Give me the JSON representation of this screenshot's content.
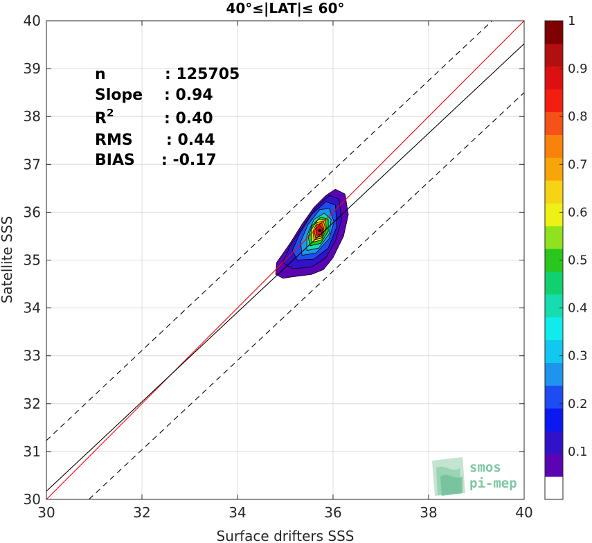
{
  "chart_data": {
    "type": "contour-scatter",
    "title": "40°≤|LAT|≤ 60°",
    "xlabel": "Surface drifters SSS",
    "ylabel": "Satellite SSS",
    "xlim": [
      30,
      40
    ],
    "ylim": [
      30,
      40
    ],
    "xticks": [
      "30",
      "32",
      "34",
      "36",
      "38",
      "40"
    ],
    "yticks": [
      "30",
      "31",
      "32",
      "33",
      "34",
      "35",
      "36",
      "37",
      "38",
      "39",
      "40"
    ],
    "grid": true,
    "stats": [
      {
        "label": "n",
        "value": ": 125705"
      },
      {
        "label": "Slope",
        "value": ": 0.94"
      },
      {
        "label": "R",
        "sup": "2",
        "value": ": 0.40"
      },
      {
        "label": "RMS",
        "value": ": 0.44"
      },
      {
        "label": "BIAS",
        "value": ": -0.17"
      }
    ],
    "lines": [
      {
        "role": "one-to-one",
        "color": "#ff0000",
        "style": "solid",
        "points": [
          [
            30,
            30
          ],
          [
            40,
            40
          ]
        ]
      },
      {
        "role": "regression",
        "color": "#000000",
        "style": "solid",
        "points": [
          [
            30,
            30.17
          ],
          [
            40,
            39.52
          ]
        ]
      },
      {
        "role": "upper-bound",
        "color": "#000000",
        "style": "dashed",
        "points": [
          [
            30,
            31.23
          ],
          [
            40,
            40.63
          ]
        ]
      },
      {
        "role": "lower-bound",
        "color": "#000000",
        "style": "dashed",
        "points": [
          [
            30.89,
            30
          ],
          [
            40,
            38.5
          ]
        ]
      }
    ],
    "density_center": [
      35.72,
      35.62
    ],
    "contour_levels": [
      {
        "level": 0.05,
        "color": "#5a04b4",
        "polygon": [
          [
            35.15,
            34.65
          ],
          [
            35.55,
            34.7
          ],
          [
            35.8,
            34.8
          ],
          [
            36.0,
            35.05
          ],
          [
            36.22,
            35.5
          ],
          [
            36.32,
            35.95
          ],
          [
            36.25,
            36.38
          ],
          [
            36.05,
            36.48
          ],
          [
            35.85,
            36.35
          ],
          [
            35.6,
            36.1
          ],
          [
            35.35,
            35.75
          ],
          [
            35.1,
            35.35
          ],
          [
            34.82,
            34.95
          ],
          [
            34.8,
            34.7
          ],
          [
            34.95,
            34.62
          ]
        ]
      },
      {
        "level": 0.1,
        "color": "#3212c8",
        "polygon": [
          [
            35.15,
            34.82
          ],
          [
            35.55,
            34.85
          ],
          [
            35.85,
            35.05
          ],
          [
            36.05,
            35.4
          ],
          [
            36.18,
            35.85
          ],
          [
            36.12,
            36.28
          ],
          [
            35.92,
            36.35
          ],
          [
            35.65,
            36.1
          ],
          [
            35.4,
            35.75
          ],
          [
            35.1,
            35.3
          ],
          [
            34.95,
            34.95
          ]
        ]
      },
      {
        "level": 0.2,
        "color": "#1e4cf0",
        "polygon": [
          [
            35.25,
            35.0
          ],
          [
            35.6,
            35.02
          ],
          [
            35.9,
            35.25
          ],
          [
            36.08,
            35.7
          ],
          [
            36.05,
            36.15
          ],
          [
            35.85,
            36.22
          ],
          [
            35.55,
            35.95
          ],
          [
            35.3,
            35.55
          ],
          [
            35.15,
            35.2
          ]
        ]
      },
      {
        "level": 0.3,
        "color": "#1d95ec",
        "polygon": [
          [
            35.35,
            35.1
          ],
          [
            35.65,
            35.15
          ],
          [
            35.92,
            35.45
          ],
          [
            36.02,
            35.8
          ],
          [
            35.92,
            36.08
          ],
          [
            35.72,
            36.05
          ],
          [
            35.48,
            35.75
          ],
          [
            35.32,
            35.38
          ]
        ]
      },
      {
        "level": 0.4,
        "color": "#16dcb0",
        "polygon": [
          [
            35.45,
            35.2
          ],
          [
            35.7,
            35.25
          ],
          [
            35.92,
            35.55
          ],
          [
            35.96,
            35.85
          ],
          [
            35.82,
            35.98
          ],
          [
            35.6,
            35.85
          ],
          [
            35.45,
            35.5
          ]
        ]
      },
      {
        "level": 0.5,
        "color": "#29c71e",
        "polygon": [
          [
            35.52,
            35.3
          ],
          [
            35.74,
            35.35
          ],
          [
            35.9,
            35.6
          ],
          [
            35.9,
            35.85
          ],
          [
            35.74,
            35.9
          ],
          [
            35.56,
            35.72
          ],
          [
            35.48,
            35.48
          ]
        ]
      },
      {
        "level": 0.6,
        "color": "#eef214",
        "polygon": [
          [
            35.56,
            35.37
          ],
          [
            35.76,
            35.42
          ],
          [
            35.86,
            35.65
          ],
          [
            35.84,
            35.85
          ],
          [
            35.68,
            35.84
          ],
          [
            35.55,
            35.64
          ]
        ]
      },
      {
        "level": 0.7,
        "color": "#f8a50a",
        "polygon": [
          [
            35.6,
            35.42
          ],
          [
            35.76,
            35.46
          ],
          [
            35.84,
            35.66
          ],
          [
            35.8,
            35.82
          ],
          [
            35.66,
            35.78
          ],
          [
            35.58,
            35.6
          ]
        ]
      },
      {
        "level": 0.8,
        "color": "#f45216",
        "polygon": [
          [
            35.63,
            35.47
          ],
          [
            35.76,
            35.5
          ],
          [
            35.81,
            35.66
          ],
          [
            35.76,
            35.78
          ],
          [
            35.66,
            35.73
          ],
          [
            35.61,
            35.6
          ]
        ]
      },
      {
        "level": 0.9,
        "color": "#dc1010",
        "polygon": [
          [
            35.66,
            35.52
          ],
          [
            35.76,
            35.54
          ],
          [
            35.78,
            35.66
          ],
          [
            35.72,
            35.74
          ],
          [
            35.65,
            35.66
          ]
        ]
      }
    ],
    "colorbar": {
      "ticks": [
        "0.1",
        "0.2",
        "0.3",
        "0.4",
        "0.5",
        "0.6",
        "0.7",
        "0.8",
        "0.9",
        "1"
      ],
      "colors": [
        "#ffffff",
        "#5a04b4",
        "#3212c8",
        "#0b18f0",
        "#1e4cf0",
        "#1d95ec",
        "#12c8f0",
        "#10ecec",
        "#16dcb0",
        "#10d070",
        "#29c71e",
        "#90e11e",
        "#eef214",
        "#f8d214",
        "#f8a50a",
        "#f8820a",
        "#f45216",
        "#f41e10",
        "#dc1010",
        "#b20f0f",
        "#7f0000"
      ]
    }
  },
  "watermark": {
    "line1": "smos",
    "line2": "pi-mep"
  }
}
